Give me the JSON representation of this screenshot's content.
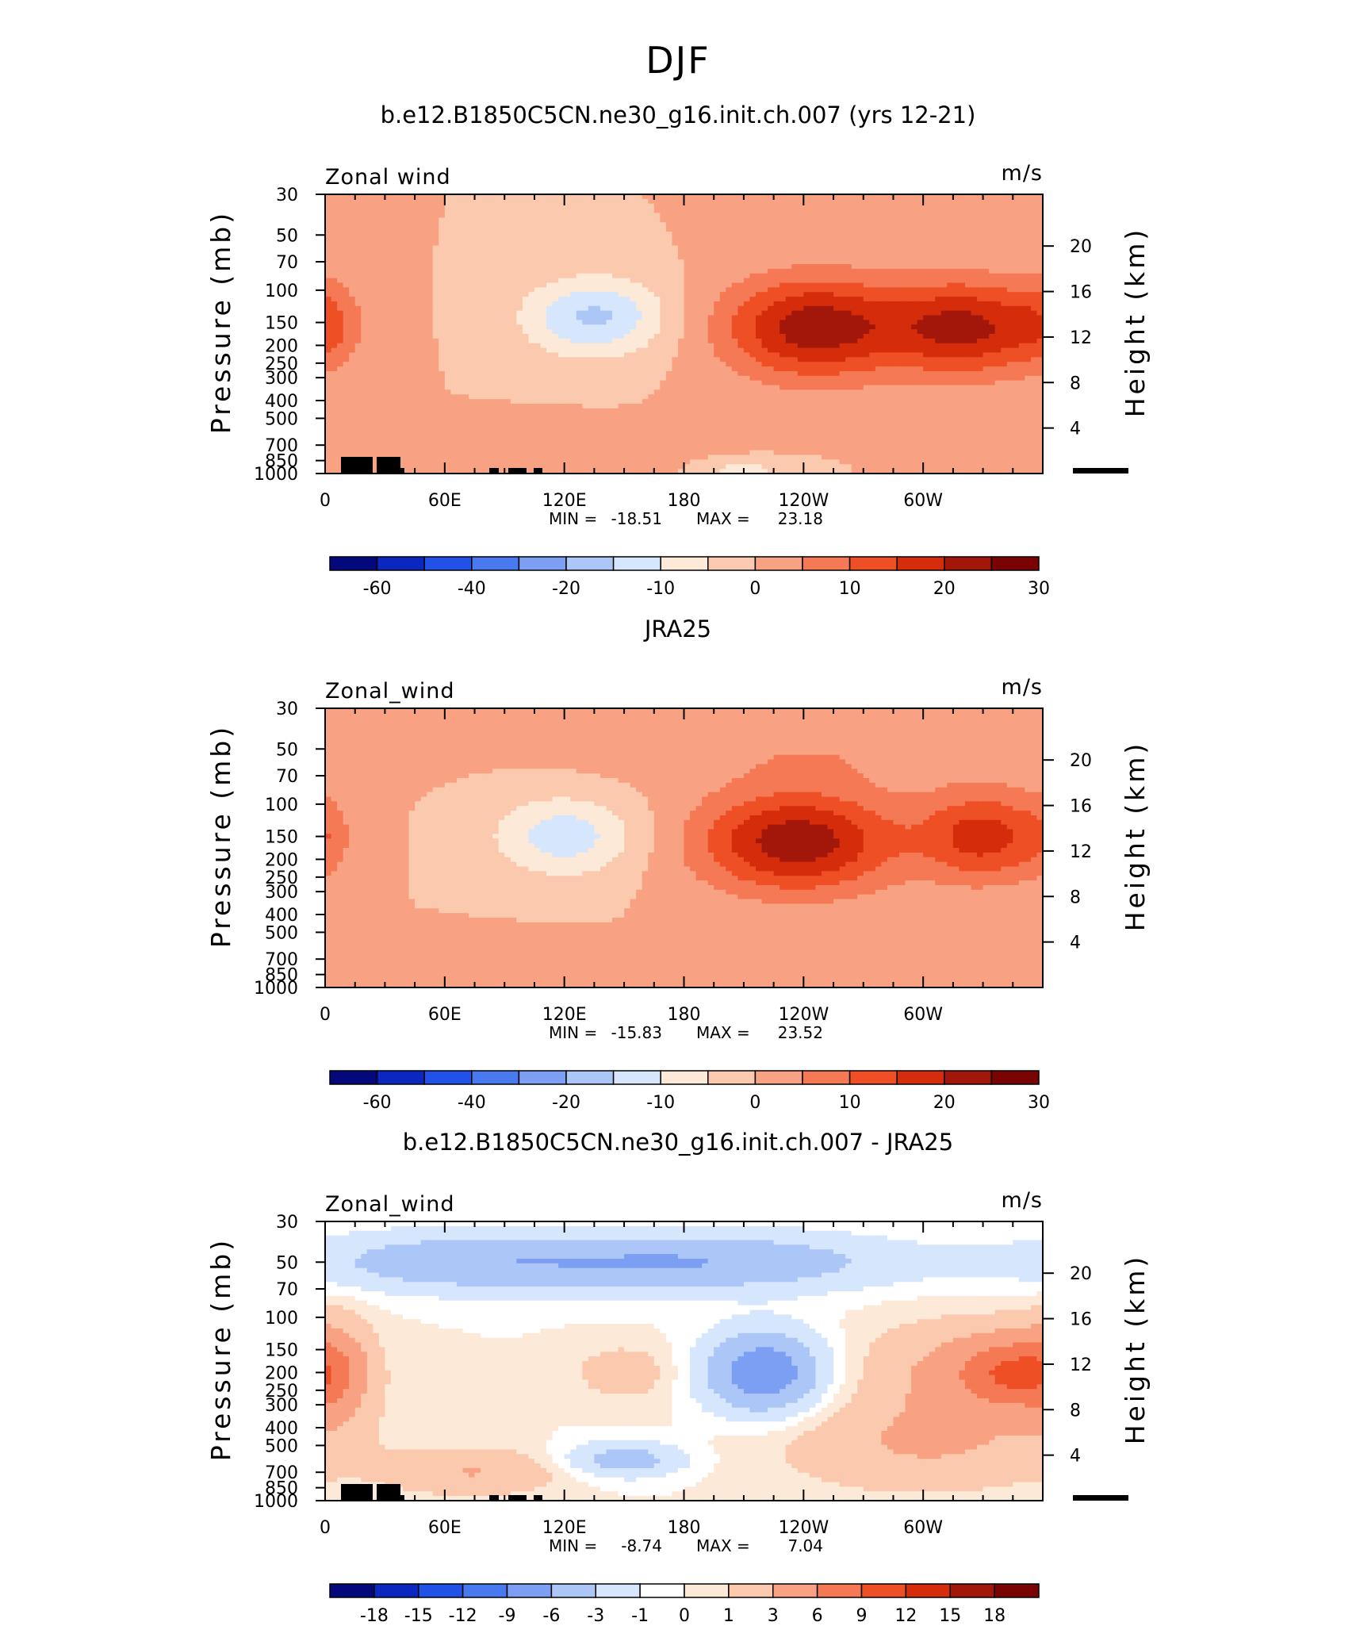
{
  "figure": {
    "title": "DJF"
  },
  "palette": {
    "model": [
      "#03087a",
      "#0a27c0",
      "#2151e6",
      "#4879ee",
      "#7c9ff3",
      "#adc6f8",
      "#d6e6fc",
      "#fde9d8",
      "#fbc9ae",
      "#f8a283",
      "#f47954",
      "#ee4f25",
      "#d52d0b",
      "#a3170a",
      "#7a0404"
    ],
    "diff": [
      "#03087a",
      "#0a27c0",
      "#2151e6",
      "#4879ee",
      "#7c9ff3",
      "#adc6f8",
      "#d6e6fc",
      "#ffffff",
      "#fde9d8",
      "#fbc9ae",
      "#f8a283",
      "#f47954",
      "#ee4f25",
      "#d52d0b",
      "#a3170a",
      "#7a0404"
    ]
  },
  "chart_data": [
    {
      "type": "heatmap",
      "title": "b.e12.B1850C5CN.ne30_g16.init.ch.007 (yrs 12-21)",
      "variable": "Zonal wind",
      "units": "m/s",
      "ylabel": "Pressure (mb)",
      "ylabel_right": "Height (km)",
      "x_ticks": [
        "0",
        "60E",
        "120E",
        "180",
        "120W",
        "60W"
      ],
      "y_ticks": [
        "30",
        "50",
        "70",
        "100",
        "150",
        "200",
        "250",
        "300",
        "400",
        "500",
        "700",
        "850",
        "1000"
      ],
      "height_ticks": [
        "20",
        "16",
        "12",
        "8",
        "4"
      ],
      "log_pressure": true,
      "stats": {
        "min_label": "MIN =",
        "min": "-18.51",
        "max_label": "MAX =",
        "max": "23.18"
      },
      "colorbar_labels": [
        "-60",
        "-40",
        "-20",
        "-10",
        "0",
        "10",
        "20",
        "30"
      ],
      "colorbar_levels": [
        -70,
        -60,
        -50,
        -40,
        -30,
        -20,
        -15,
        -10,
        -5,
        0,
        5,
        10,
        15,
        20,
        25,
        30
      ],
      "features": [
        {
          "lon": 135,
          "p": 140,
          "value": -16,
          "sx": 25,
          "sy": 0.35
        },
        {
          "lon": 245,
          "p": 160,
          "value": 23,
          "sx": 32,
          "sy": 0.45
        },
        {
          "lon": 322,
          "p": 160,
          "value": 21,
          "sx": 28,
          "sy": 0.42
        },
        {
          "lon": 0,
          "p": 150,
          "value": 7,
          "sx": 12,
          "sy": 0.4
        },
        {
          "lon": 110,
          "p": 750,
          "value": 5,
          "sx": 40,
          "sy": 0.2
        },
        {
          "lon": 210,
          "p": 950,
          "value": -7,
          "sx": 15,
          "sy": 0.08
        }
      ]
    },
    {
      "type": "heatmap",
      "title": "JRA25",
      "variable": "Zonal_wind",
      "units": "m/s",
      "ylabel": "Pressure (mb)",
      "ylabel_right": "Height (km)",
      "x_ticks": [
        "0",
        "60E",
        "120E",
        "180",
        "120W",
        "60W"
      ],
      "y_ticks": [
        "30",
        "50",
        "70",
        "100",
        "150",
        "200",
        "250",
        "300",
        "400",
        "500",
        "700",
        "850",
        "1000"
      ],
      "height_ticks": [
        "20",
        "16",
        "12",
        "8",
        "4"
      ],
      "log_pressure": true,
      "stats": {
        "min_label": "MIN =",
        "min": "-15.83",
        "max_label": "MAX =",
        "max": "23.52"
      },
      "colorbar_labels": [
        "-60",
        "-40",
        "-20",
        "-10",
        "0",
        "10",
        "20",
        "30"
      ],
      "colorbar_levels": [
        -70,
        -60,
        -50,
        -40,
        -30,
        -20,
        -15,
        -10,
        -5,
        0,
        5,
        10,
        15,
        20,
        25,
        30
      ],
      "features": [
        {
          "lon": 120,
          "p": 150,
          "value": -13,
          "sx": 25,
          "sy": 0.35
        },
        {
          "lon": 237,
          "p": 160,
          "value": 23.5,
          "sx": 35,
          "sy": 0.45
        },
        {
          "lon": 330,
          "p": 150,
          "value": 17,
          "sx": 22,
          "sy": 0.4
        },
        {
          "lon": 80,
          "p": 750,
          "value": 5,
          "sx": 35,
          "sy": 0.2
        },
        {
          "lon": 250,
          "p": 50,
          "value": 4,
          "sx": 80,
          "sy": 0.3
        },
        {
          "lon": 0,
          "p": 150,
          "value": 4,
          "sx": 10,
          "sy": 0.4
        }
      ]
    },
    {
      "type": "heatmap",
      "title": "b.e12.B1850C5CN.ne30_g16.init.ch.007 - JRA25",
      "variable": "Zonal_wind",
      "units": "m/s",
      "ylabel": "Pressure (mb)",
      "ylabel_right": "Height (km)",
      "x_ticks": [
        "0",
        "60E",
        "120E",
        "180",
        "120W",
        "60W"
      ],
      "y_ticks": [
        "30",
        "50",
        "70",
        "100",
        "150",
        "200",
        "250",
        "300",
        "400",
        "500",
        "700",
        "850",
        "1000"
      ],
      "height_ticks": [
        "20",
        "16",
        "12",
        "8",
        "4"
      ],
      "log_pressure": true,
      "stats": {
        "min_label": "MIN =",
        "min": "-8.74",
        "max_label": "MAX =",
        "max": "7.04"
      },
      "colorbar_labels": [
        "-18",
        "-15",
        "-12",
        "-9",
        "-6",
        "-3",
        "-1",
        "0",
        "1",
        "3",
        "6",
        "9",
        "12",
        "15",
        "18"
      ],
      "colorbar_levels": [
        -21,
        -18,
        -15,
        -12,
        -9,
        -6,
        -3,
        -1,
        0,
        1,
        3,
        6,
        9,
        12,
        15,
        18,
        21
      ],
      "features": [
        {
          "lon": 180,
          "p": 50,
          "value": -6,
          "sx": 70,
          "sy": 0.25
        },
        {
          "lon": 60,
          "p": 50,
          "value": -4,
          "sx": 50,
          "sy": 0.25
        },
        {
          "lon": 220,
          "p": 200,
          "value": -8.7,
          "sx": 20,
          "sy": 0.35
        },
        {
          "lon": 150,
          "p": 200,
          "value": 2,
          "sx": 18,
          "sy": 0.25
        },
        {
          "lon": 5,
          "p": 200,
          "value": 3.5,
          "sx": 12,
          "sy": 0.5
        },
        {
          "lon": 345,
          "p": 200,
          "value": 6.5,
          "sx": 18,
          "sy": 0.3
        },
        {
          "lon": 320,
          "p": 200,
          "value": 3.5,
          "sx": 35,
          "sy": 0.45
        },
        {
          "lon": 75,
          "p": 700,
          "value": 3,
          "sx": 30,
          "sy": 0.2
        },
        {
          "lon": 300,
          "p": 500,
          "value": 3,
          "sx": 50,
          "sy": 0.4
        },
        {
          "lon": 150,
          "p": 600,
          "value": -4.5,
          "sx": 20,
          "sy": 0.15
        }
      ]
    }
  ]
}
